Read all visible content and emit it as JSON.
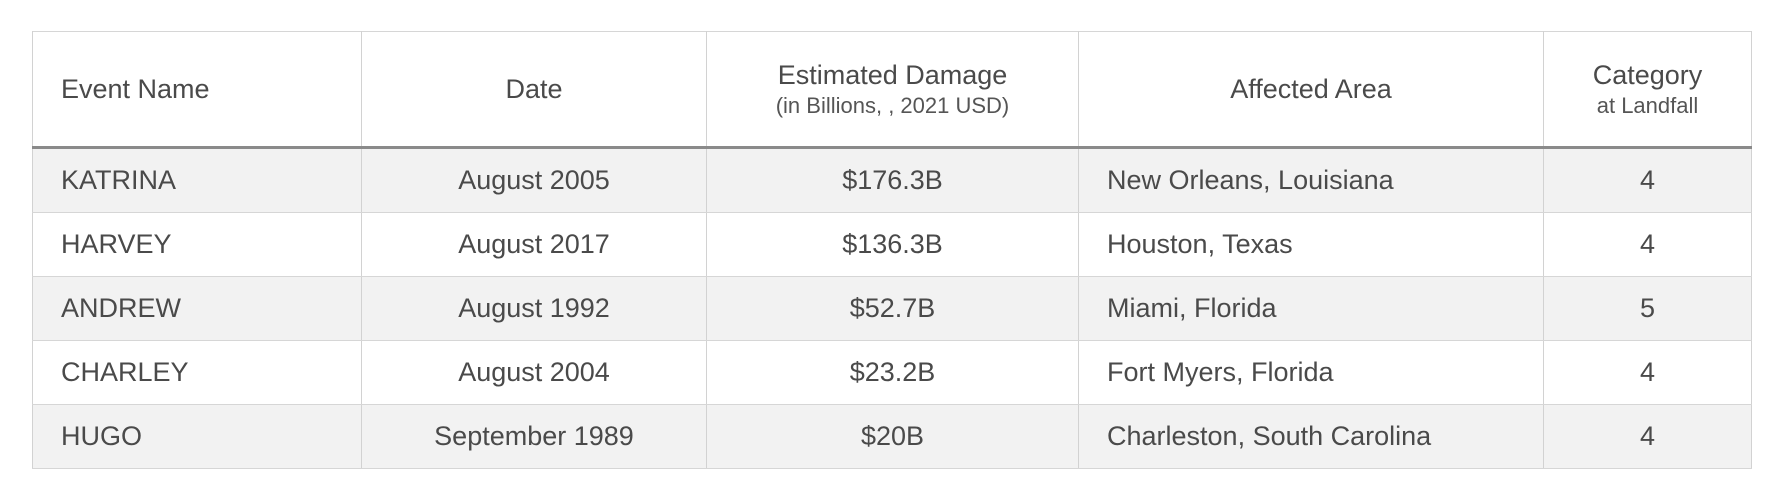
{
  "table": {
    "headers": {
      "event_name": "Event Name",
      "date": "Date",
      "damage": "Estimated Damage",
      "damage_sub": "(in Billions, , 2021 USD)",
      "area": "Affected Area",
      "category": "Category",
      "category_sub": "at Landfall"
    },
    "rows": [
      {
        "name": "KATRINA",
        "date": "August 2005",
        "damage": "$176.3B",
        "area": "New Orleans, Louisiana",
        "category": "4"
      },
      {
        "name": "HARVEY",
        "date": "August 2017",
        "damage": "$136.3B",
        "area": "Houston, Texas",
        "category": "4"
      },
      {
        "name": "ANDREW",
        "date": "August 1992",
        "damage": "$52.7B",
        "area": "Miami, Florida",
        "category": "5"
      },
      {
        "name": "CHARLEY",
        "date": "August 2004",
        "damage": "$23.2B",
        "area": "Fort Myers, Florida",
        "category": "4"
      },
      {
        "name": "HUGO",
        "date": "September 1989",
        "damage": "$20B",
        "area": "Charleston, South Carolina",
        "category": "4"
      }
    ]
  }
}
